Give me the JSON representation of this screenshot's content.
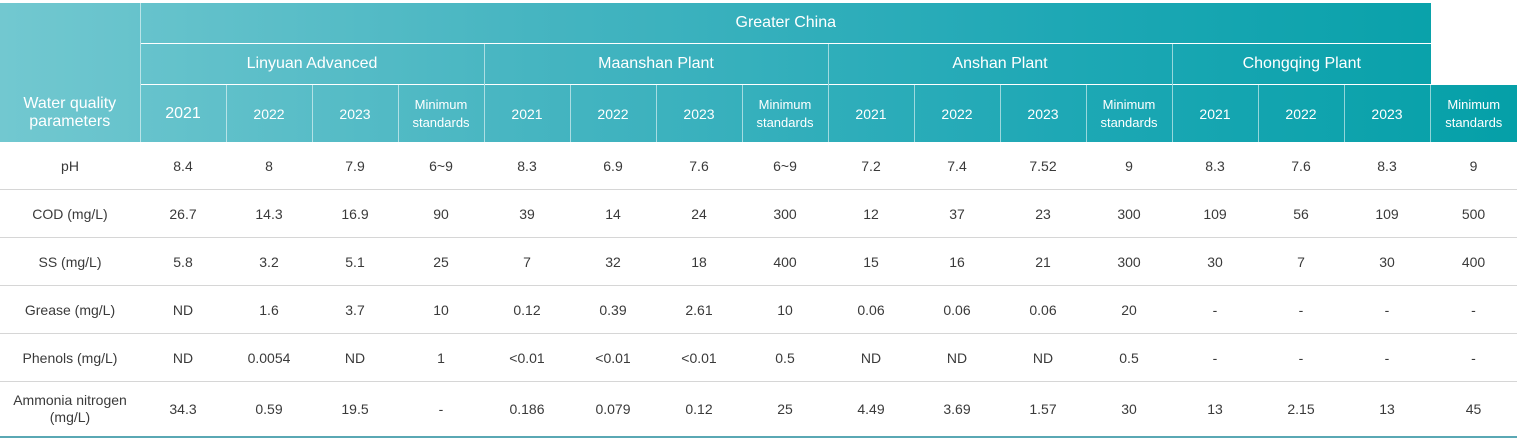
{
  "header": {
    "param_label": "Water quality parameters",
    "region": "Greater China",
    "plants": [
      "Linyuan Advanced",
      "Maanshan Plant",
      "Anshan Plant",
      "Chongqing Plant"
    ],
    "subcols": [
      "2021",
      "2022",
      "2023",
      "Minimum standards"
    ]
  },
  "rows": [
    {
      "param": "pH",
      "values": [
        "8.4",
        "8",
        "7.9",
        "6~9",
        "8.3",
        "6.9",
        "7.6",
        "6~9",
        "7.2",
        "7.4",
        "7.52",
        "9",
        "8.3",
        "7.6",
        "8.3",
        "9"
      ]
    },
    {
      "param": "COD (mg/L)",
      "values": [
        "26.7",
        "14.3",
        "16.9",
        "90",
        "39",
        "14",
        "24",
        "300",
        "12",
        "37",
        "23",
        "300",
        "109",
        "56",
        "109",
        "500"
      ]
    },
    {
      "param": "SS (mg/L)",
      "values": [
        "5.8",
        "3.2",
        "5.1",
        "25",
        "7",
        "32",
        "18",
        "400",
        "15",
        "16",
        "21",
        "300",
        "30",
        "7",
        "30",
        "400"
      ]
    },
    {
      "param": "Grease (mg/L)",
      "values": [
        "ND",
        "1.6",
        "3.7",
        "10",
        "0.12",
        "0.39",
        "2.61",
        "10",
        "0.06",
        "0.06",
        "0.06",
        "20",
        "-",
        "-",
        "-",
        "-"
      ]
    },
    {
      "param": "Phenols (mg/L)",
      "values": [
        "ND",
        "0.0054",
        "ND",
        "1",
        "<0.01",
        "<0.01",
        "<0.01",
        "0.5",
        "ND",
        "ND",
        "ND",
        "0.5",
        "-",
        "-",
        "-",
        "-"
      ]
    },
    {
      "param": "Ammonia nitrogen (mg/L)",
      "values": [
        "34.3",
        "0.59",
        "19.5",
        "-",
        "0.186",
        "0.079",
        "0.12",
        "25",
        "4.49",
        "3.69",
        "1.57",
        "30",
        "13",
        "2.15",
        "13",
        "45"
      ]
    }
  ]
}
